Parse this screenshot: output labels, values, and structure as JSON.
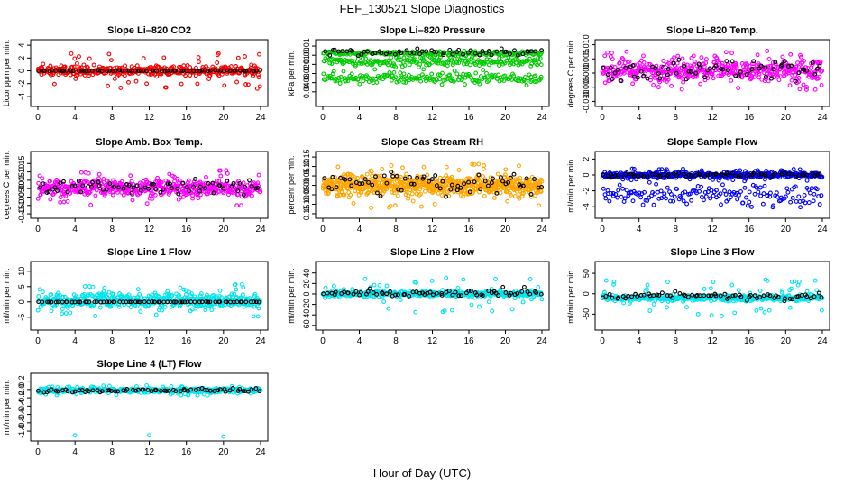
{
  "figure": {
    "title": "FEF_130521  Slope Diagnostics",
    "xlabel": "Hour of Day (UTC)"
  },
  "chart_data": [
    {
      "type": "scatter",
      "title": "Slope Li–820 CO2",
      "xlabel": "",
      "ylabel": "Licor ppm per min.",
      "xlim": [
        0,
        24
      ],
      "ylim": [
        -5,
        4.3
      ],
      "x_ticks": [
        0,
        4,
        8,
        12,
        16,
        20,
        24
      ],
      "y_ticks": [
        -4,
        -2,
        0,
        2,
        4
      ],
      "y_tick_labels": [
        "-4",
        "-2",
        "0",
        "2",
        "4"
      ],
      "grid": false,
      "legend": "none",
      "series": [
        {
          "color": "#ff0000",
          "center": 0,
          "spread": 0.6,
          "outlier_spread": 2.8,
          "count": 420
        },
        {
          "color": "#000000",
          "center": 0,
          "spread": 0.05,
          "outlier_spread": 0.1,
          "count": 70
        }
      ]
    },
    {
      "type": "scatter",
      "title": "Slope Li–820 Pressure",
      "xlabel": "",
      "ylabel": "kPa per min.",
      "xlim": [
        0,
        24
      ],
      "ylim": [
        -0.052,
        0.013
      ],
      "x_ticks": [
        0,
        4,
        8,
        12,
        16,
        20,
        24
      ],
      "y_ticks": [
        -0.04,
        -0.03,
        -0.02,
        -0.01,
        0,
        0.01
      ],
      "y_tick_labels": [
        "-0.04",
        "-0.03",
        "-0.02",
        "-0.01",
        "0.00",
        "0.01"
      ],
      "grid": false,
      "legend": "none",
      "series": [
        {
          "color": "#00cc00",
          "center": 0.002,
          "spread": 0.002,
          "outlier_spread": 0.003,
          "count": 200
        },
        {
          "color": "#00cc00",
          "center": -0.007,
          "spread": 0.004,
          "outlier_spread": 0.006,
          "count": 200
        },
        {
          "color": "#00cc00",
          "center": -0.025,
          "spread": 0.005,
          "outlier_spread": 0.01,
          "count": 200
        },
        {
          "color": "#000000",
          "center": 0.003,
          "spread": 0.003,
          "outlier_spread": 0.004,
          "count": 60
        }
      ]
    },
    {
      "type": "scatter",
      "title": "Slope Li–820 Temp.",
      "xlabel": "",
      "ylabel": "degrees C per min.",
      "xlim": [
        0,
        24
      ],
      "ylim": [
        -0.0105,
        0.0105
      ],
      "x_ticks": [
        0,
        4,
        8,
        12,
        16,
        20,
        24
      ],
      "y_ticks": [
        -0.01,
        -0.005,
        0,
        0.005,
        0.01
      ],
      "y_tick_labels": [
        "-0.010",
        "-0.005",
        "0.000",
        "0.005",
        "0.010"
      ],
      "grid": false,
      "legend": "none",
      "series": [
        {
          "color": "#ff00ff",
          "center": 0.001,
          "spread": 0.003,
          "outlier_spread": 0.007,
          "count": 500
        },
        {
          "color": "#000000",
          "center": 0.001,
          "spread": 0.003,
          "outlier_spread": 0.004,
          "count": 70
        }
      ]
    },
    {
      "type": "scatter",
      "title": "Slope Amb. Box Temp.",
      "xlabel": "",
      "ylabel": "degrees C per min.",
      "xlim": [
        0,
        24
      ],
      "ylim": [
        -0.155,
        0.2
      ],
      "x_ticks": [
        0,
        4,
        8,
        12,
        16,
        20,
        24
      ],
      "y_ticks": [
        -0.15,
        -0.1,
        -0.05,
        0,
        0.05,
        0.1,
        0.15
      ],
      "y_tick_labels": [
        "-0.15",
        "-0.10",
        "-0.05",
        "0.00",
        "0.05",
        "0.10",
        "0.15"
      ],
      "grid": false,
      "legend": "none",
      "series": [
        {
          "color": "#ff00ff",
          "center": 0.005,
          "spread": 0.04,
          "outlier_spread": 0.11,
          "count": 520
        },
        {
          "color": "#000000",
          "center": 0.01,
          "spread": 0.035,
          "outlier_spread": 0.05,
          "count": 70
        }
      ]
    },
    {
      "type": "scatter",
      "title": "Slope Gas Stream RH",
      "xlabel": "",
      "ylabel": "percent per min.",
      "xlim": [
        0,
        24
      ],
      "ylim": [
        -0.155,
        0.16
      ],
      "x_ticks": [
        0,
        4,
        8,
        12,
        16,
        20,
        24
      ],
      "y_ticks": [
        -0.15,
        -0.1,
        -0.05,
        0,
        0.05,
        0.1,
        0.15
      ],
      "y_tick_labels": [
        "-0.15",
        "-0.10",
        "-0.05",
        "0.00",
        "0.05",
        "0.10",
        "0.15"
      ],
      "grid": false,
      "legend": "none",
      "series": [
        {
          "color": "#ffa500",
          "center": 0,
          "spread": 0.045,
          "outlier_spread": 0.12,
          "count": 700
        },
        {
          "color": "#000000",
          "center": 0.01,
          "spread": 0.04,
          "outlier_spread": 0.07,
          "count": 70
        }
      ]
    },
    {
      "type": "scatter",
      "title": "Slope Sample Flow",
      "xlabel": "",
      "ylabel": "ml/min per min.",
      "xlim": [
        0,
        24
      ],
      "ylim": [
        -5,
        2.5
      ],
      "x_ticks": [
        0,
        4,
        8,
        12,
        16,
        20,
        24
      ],
      "y_ticks": [
        -4,
        -2,
        0,
        2
      ],
      "y_tick_labels": [
        "-4",
        "-2",
        "0",
        "2"
      ],
      "grid": false,
      "legend": "none",
      "series": [
        {
          "color": "#0000ff",
          "center": 0,
          "spread": 0.3,
          "outlier_spread": 0.8,
          "count": 450
        },
        {
          "color": "#0000ff",
          "center": -2.5,
          "spread": 1.0,
          "outlier_spread": 1.6,
          "count": 160
        },
        {
          "color": "#000000",
          "center": 0,
          "spread": 0.2,
          "outlier_spread": 0.3,
          "count": 70
        }
      ]
    },
    {
      "type": "scatter",
      "title": "Slope Line 1 Flow",
      "xlabel": "",
      "ylabel": "ml/min per min.",
      "xlim": [
        0,
        24
      ],
      "ylim": [
        -8,
        12
      ],
      "x_ticks": [
        0,
        4,
        8,
        12,
        16,
        20,
        24
      ],
      "y_ticks": [
        -5,
        0,
        5,
        10
      ],
      "y_tick_labels": [
        "-5",
        "0",
        "5",
        "10"
      ],
      "grid": false,
      "legend": "none",
      "series": [
        {
          "color": "#00e5ee",
          "center": 0.5,
          "spread": 2.0,
          "outlier_spread": 5.5,
          "count": 480
        },
        {
          "color": "#000000",
          "center": 0,
          "spread": 0.05,
          "outlier_spread": 0.1,
          "count": 70
        }
      ]
    },
    {
      "type": "scatter",
      "title": "Slope Line 2 Flow",
      "xlabel": "",
      "ylabel": "ml/min per min.",
      "xlim": [
        0,
        24
      ],
      "ylim": [
        -62,
        55
      ],
      "x_ticks": [
        0,
        4,
        8,
        12,
        16,
        20,
        24
      ],
      "y_ticks": [
        -60,
        -40,
        -20,
        0,
        20,
        40
      ],
      "y_tick_labels": [
        "-60",
        "-40",
        "-20",
        "0",
        "20",
        "40"
      ],
      "grid": false,
      "legend": "none",
      "series": [
        {
          "color": "#00e5ee",
          "center": 0,
          "spread": 4,
          "outlier_spread": 35,
          "count": 460
        },
        {
          "color": "#000000",
          "center": 2,
          "spread": 5,
          "outlier_spread": 12,
          "count": 70
        }
      ]
    },
    {
      "type": "scatter",
      "title": "Slope Line 3 Flow",
      "xlabel": "",
      "ylabel": "ml/min per min.",
      "xlim": [
        0,
        24
      ],
      "ylim": [
        -80,
        70
      ],
      "x_ticks": [
        0,
        4,
        8,
        12,
        16,
        20,
        24
      ],
      "y_ticks": [
        -50,
        0,
        50
      ],
      "y_tick_labels": [
        "-50",
        "0",
        "50"
      ],
      "grid": false,
      "legend": "none",
      "series": [
        {
          "color": "#00e5ee",
          "center": -10,
          "spread": 6,
          "outlier_spread": 45,
          "count": 460
        },
        {
          "color": "#000000",
          "center": -5,
          "spread": 6,
          "outlier_spread": 15,
          "count": 70
        }
      ]
    },
    {
      "type": "scatter",
      "title": "Slope Line 4 (LT) Flow",
      "xlabel": "",
      "ylabel": "ml/min per min.",
      "xlim": [
        0,
        24
      ],
      "ylim": [
        -1.15,
        0.3
      ],
      "x_ticks": [
        0,
        4,
        8,
        12,
        16,
        20,
        24
      ],
      "y_ticks": [
        -1.0,
        -0.8,
        -0.6,
        -0.4,
        -0.2,
        0,
        0.2
      ],
      "y_tick_labels": [
        "-1.0",
        "-0.8",
        "-0.6",
        "-0.4",
        "-0.2",
        "0.0",
        "0.2"
      ],
      "grid": false,
      "legend": "none",
      "series": [
        {
          "color": "#00e5ee",
          "center": -0.02,
          "spread": 0.04,
          "outlier_spread": 0.12,
          "count": 480
        },
        {
          "color": "#000000",
          "center": -0.02,
          "spread": 0.03,
          "outlier_spread": 0.06,
          "count": 70
        }
      ],
      "outliers": [
        {
          "x": 4.0,
          "y": -1.1
        },
        {
          "x": 12.0,
          "y": -1.1
        },
        {
          "x": 20.0,
          "y": -1.13
        }
      ]
    }
  ]
}
